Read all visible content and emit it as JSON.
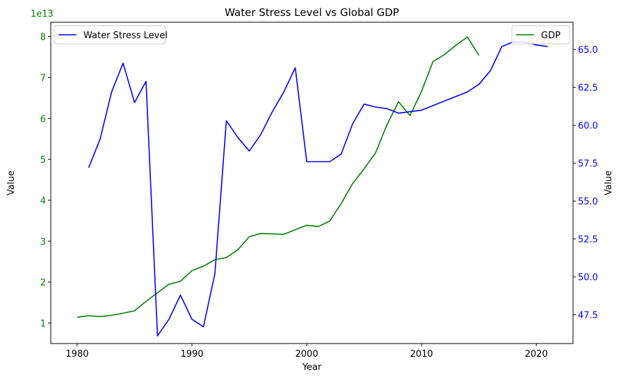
{
  "chart_data": {
    "type": "line",
    "title": "Water Stress Level vs Global GDP",
    "xlabel": "Year",
    "ylabel_left": "Value",
    "ylabel_right": "Value",
    "left_axis_exponent": "1e13",
    "xlim": [
      1977.7,
      2023.2
    ],
    "ylim_left": [
      0.5,
      8.35
    ],
    "ylim_right": [
      45.6,
      66.8
    ],
    "x_ticks": [
      1980,
      1990,
      2000,
      2010,
      2020
    ],
    "y_left_ticks": [
      1,
      2,
      3,
      4,
      5,
      6,
      7,
      8
    ],
    "y_right_ticks": [
      "47.5",
      "50.0",
      "52.5",
      "55.0",
      "57.5",
      "60.0",
      "62.5",
      "65.0"
    ],
    "legend_placement_left": "upper-left",
    "legend_placement_right": "upper-right",
    "grid": false,
    "colors": {
      "gdp": "#008000",
      "water": "#0000ff",
      "left_axis": "#008000",
      "right_axis": "#0000ff"
    },
    "series": [
      {
        "name": "GDP",
        "axis": "left",
        "unit_multiplier": "1e13",
        "x": [
          1980,
          1981,
          1982,
          1983,
          1984,
          1985,
          1986,
          1987,
          1988,
          1989,
          1990,
          1991,
          1992,
          1993,
          1994,
          1995,
          1996,
          1997,
          1998,
          1999,
          2000,
          2001,
          2002,
          2003,
          2004,
          2005,
          2006,
          2007,
          2008,
          2009,
          2010,
          2011,
          2012,
          2013,
          2014,
          2015
        ],
        "values": [
          1.14,
          1.18,
          1.16,
          1.19,
          1.24,
          1.3,
          1.53,
          1.74,
          1.95,
          2.02,
          2.28,
          2.39,
          2.55,
          2.6,
          2.79,
          3.11,
          3.19,
          3.18,
          3.17,
          3.28,
          3.39,
          3.36,
          3.49,
          3.92,
          4.41,
          4.77,
          5.16,
          5.85,
          6.41,
          6.07,
          6.66,
          7.39,
          7.56,
          7.79,
          7.99,
          7.54
        ]
      },
      {
        "name": "Water Stress Level",
        "axis": "right",
        "x": [
          1981,
          1982,
          1983,
          1984,
          1985,
          1986,
          1987,
          1988,
          1989,
          1990,
          1991,
          1992,
          1993,
          1994,
          1995,
          1996,
          1997,
          1998,
          1999,
          2000,
          2001,
          2002,
          2003,
          2004,
          2005,
          2006,
          2007,
          2008,
          2009,
          2010,
          2011,
          2012,
          2013,
          2014,
          2015,
          2016,
          2017,
          2018,
          2019,
          2020,
          2021
        ],
        "values": [
          57.2,
          59.1,
          62.2,
          64.1,
          61.5,
          62.9,
          46.1,
          47.2,
          48.8,
          47.2,
          46.7,
          50.2,
          60.3,
          59.2,
          58.3,
          59.4,
          60.9,
          62.2,
          63.8,
          57.6,
          57.6,
          57.6,
          58.1,
          60.1,
          61.4,
          61.2,
          61.1,
          60.8,
          60.9,
          61.0,
          61.3,
          61.6,
          61.9,
          62.2,
          62.7,
          63.6,
          65.2,
          65.5,
          65.5,
          65.3,
          65.2
        ]
      }
    ]
  }
}
